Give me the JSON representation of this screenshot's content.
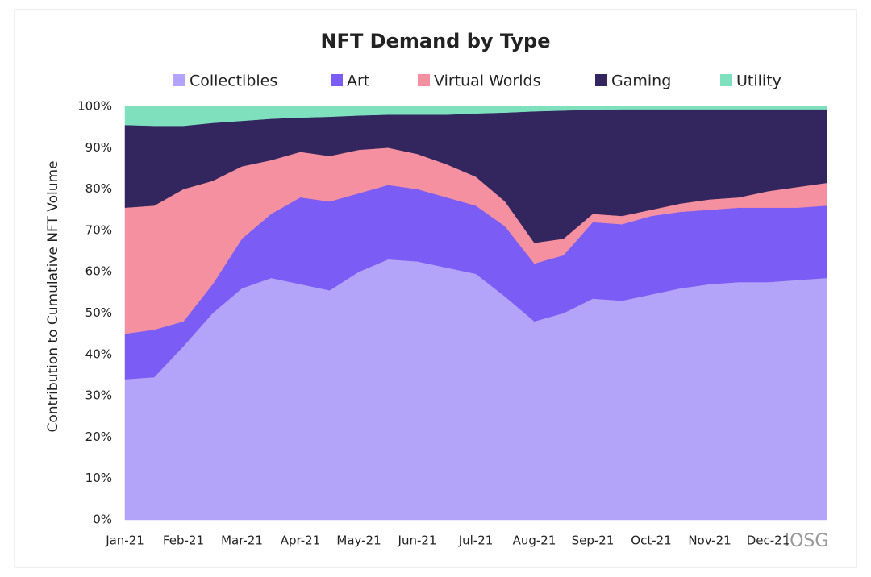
{
  "chart_data": {
    "type": "stacked-area",
    "title": "NFT Demand by Type",
    "y_label": "Contribution to Cumulative NFT Volume",
    "watermark": "IOSG",
    "categories": [
      "Jan-21",
      null,
      "Feb-21",
      null,
      "Mar-21",
      null,
      "Apr-21",
      null,
      "May-21",
      null,
      "Jun-21",
      null,
      "Jul-21",
      null,
      "Aug-21",
      null,
      "Sep-21",
      null,
      "Oct-21",
      null,
      "Nov-21",
      null,
      "Dec-21",
      null,
      null
    ],
    "series": [
      {
        "name": "Collectibles",
        "color": "#b3a4fa",
        "values": [
          34,
          34.5,
          42,
          50,
          56,
          58.5,
          57,
          55.5,
          60,
          63,
          62.5,
          61,
          59.5,
          54,
          48,
          50,
          53.5,
          53,
          54.5,
          56,
          57,
          57.5,
          57.5,
          58,
          58.5
        ]
      },
      {
        "name": "Art",
        "color": "#7b5cf5",
        "values": [
          11,
          11.5,
          6,
          7,
          12,
          15.5,
          21,
          21.5,
          19,
          18,
          17.5,
          17,
          16.5,
          17,
          14,
          14,
          18.5,
          18.5,
          19,
          18.5,
          18,
          18,
          18,
          17.5,
          17.5
        ]
      },
      {
        "name": "Virtual Worlds",
        "color": "#f4909f",
        "values": [
          30.5,
          30,
          32,
          25,
          17.5,
          13,
          11,
          11,
          10.5,
          9,
          8.5,
          8,
          7,
          6,
          5,
          4,
          2,
          2,
          1.5,
          2,
          2.5,
          2.5,
          4,
          5,
          5.5
        ]
      },
      {
        "name": "Gaming",
        "color": "#33265e",
        "values": [
          20,
          19.3,
          15.3,
          14,
          11,
          10,
          8.3,
          9.5,
          8.3,
          8,
          9.5,
          12,
          15.3,
          21.5,
          31.8,
          31,
          25.2,
          25.8,
          24.3,
          22.8,
          21.8,
          21.3,
          19.8,
          18.8,
          17.8
        ]
      },
      {
        "name": "Utility",
        "color": "#7ee0bd",
        "values": [
          4.5,
          4.7,
          4.7,
          4,
          3.5,
          3,
          2.7,
          2.5,
          2.2,
          2,
          2,
          2,
          1.7,
          1.5,
          1.2,
          1,
          0.8,
          0.7,
          0.7,
          0.7,
          0.7,
          0.7,
          0.7,
          0.7,
          0.7
        ]
      }
    ],
    "ylim": [
      0,
      100
    ],
    "yticks": [
      {
        "value": 0,
        "label": "0%"
      },
      {
        "value": 10,
        "label": "10%"
      },
      {
        "value": 20,
        "label": "20%"
      },
      {
        "value": 30,
        "label": "30%"
      },
      {
        "value": 40,
        "label": "40%"
      },
      {
        "value": 50,
        "label": "50%"
      },
      {
        "value": 60,
        "label": "60%"
      },
      {
        "value": 70,
        "label": "70%"
      },
      {
        "value": 80,
        "label": "80%"
      },
      {
        "value": 90,
        "label": "90%"
      },
      {
        "value": 100,
        "label": "100%"
      }
    ],
    "legend": "top",
    "grid": false
  }
}
